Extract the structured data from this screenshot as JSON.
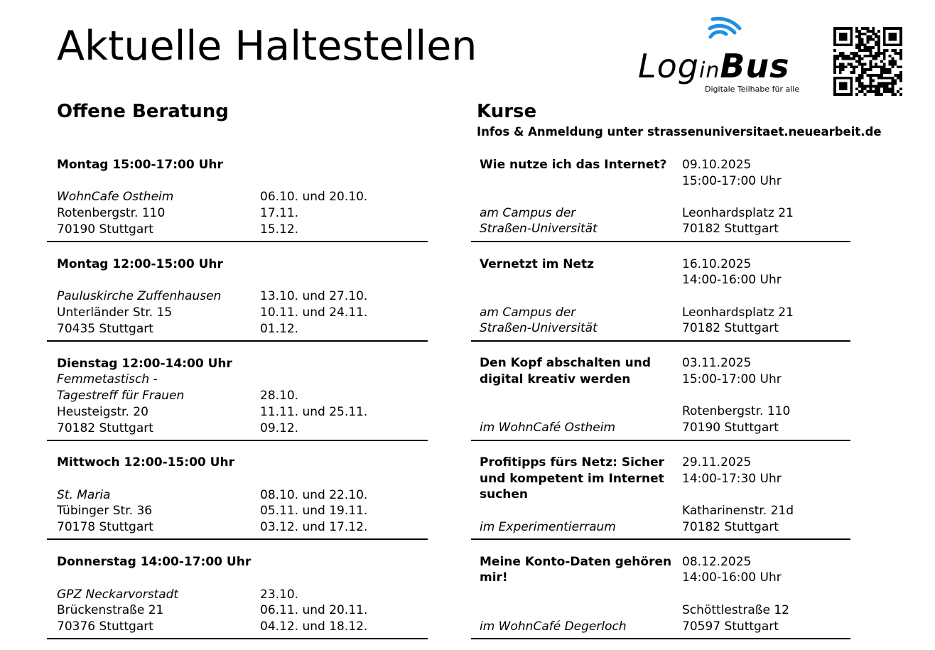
{
  "page": {
    "title": "Aktuelle Haltestellen"
  },
  "logo": {
    "name_part1": "Log",
    "name_part2": "in",
    "name_part3": "Bus",
    "tagline": "Digitale Teilhabe für alle"
  },
  "left": {
    "heading": "Offene Beratung",
    "blocks": [
      {
        "when": "Montag 15:00-17:00 Uhr",
        "place": "WohnCafe Ostheim",
        "street": "Rotenbergstr. 110",
        "city": "70190 Stuttgart",
        "dates": [
          "06.10. und 20.10.",
          "17.11.",
          "15.12."
        ]
      },
      {
        "when": "Montag 12:00-15:00 Uhr",
        "place": "Pauluskirche Zuffenhausen",
        "street": "Unterländer Str. 15",
        "city": "70435 Stuttgart",
        "dates": [
          "13.10. und 27.10.",
          "10.11. und 24.11.",
          "01.12."
        ]
      },
      {
        "when": "Dienstag 12:00-14:00 Uhr",
        "place": "Femmetastisch -",
        "place2": "Tagestreff für Frauen",
        "street": "Heusteigstr. 20",
        "city": "70182 Stuttgart",
        "dates": [
          "28.10.",
          "11.11. und 25.11.",
          "09.12."
        ]
      },
      {
        "when": "Mittwoch 12:00-15:00 Uhr",
        "place": "St. Maria",
        "street": "Tübinger Str. 36",
        "city": "70178 Stuttgart",
        "dates": [
          "08.10. und 22.10.",
          "05.11. und 19.11.",
          "03.12. und 17.12."
        ]
      },
      {
        "when": "Donnerstag 14:00-17:00 Uhr",
        "place": "GPZ Neckarvorstadt",
        "street": "Brückenstraße 21",
        "city": "70376 Stuttgart",
        "dates": [
          "23.10.",
          "06.11. und 20.11.",
          "04.12. und 18.12."
        ]
      }
    ]
  },
  "right": {
    "heading": "Kurse",
    "subheading": "Infos & Anmeldung unter strassenuniversitaet.neuearbeit.de",
    "courses": [
      {
        "title": [
          "Wie nutze ich das Internet?"
        ],
        "date": "09.10.2025",
        "time": "15:00-17:00 Uhr",
        "location": [
          "am Campus der",
          "Straßen-Universität"
        ],
        "address": [
          "Leonhardsplatz 21",
          "70182 Stuttgart"
        ]
      },
      {
        "title": [
          "Vernetzt im Netz"
        ],
        "date": "16.10.2025",
        "time": "14:00-16:00 Uhr",
        "location": [
          "am Campus der",
          "Straßen-Universität"
        ],
        "address": [
          "Leonhardsplatz 21",
          "70182 Stuttgart"
        ]
      },
      {
        "title": [
          "Den Kopf abschalten und",
          "digital kreativ werden"
        ],
        "date": "03.11.2025",
        "time": "15:00-17:00 Uhr",
        "location": [
          "im WohnCafé Ostheim"
        ],
        "address": [
          "Rotenbergstr. 110",
          "70190 Stuttgart"
        ]
      },
      {
        "title": [
          "Profitipps fürs Netz: Sicher",
          "und kompetent im Internet",
          "suchen"
        ],
        "date": "29.11.2025",
        "time": "14:00-17:30 Uhr",
        "location": [
          "im Experimentierraum"
        ],
        "address": [
          "Katharinenstr. 21d",
          "70182 Stuttgart"
        ]
      },
      {
        "title": [
          "Meine Konto-Daten gehören",
          "mir!"
        ],
        "date": "08.12.2025",
        "time": "14:00-16:00 Uhr",
        "location": [
          "im WohnCafé Degerloch"
        ],
        "address": [
          "Schöttlestraße 12",
          "70597 Stuttgart"
        ]
      }
    ]
  }
}
